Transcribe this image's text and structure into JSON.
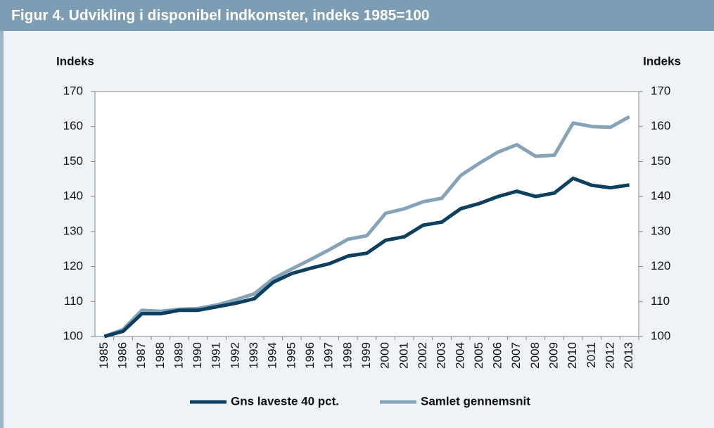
{
  "chart_data": {
    "type": "line",
    "title": "Figur 4. Udvikling i disponibel indkomster, indeks 1985=100",
    "y_label": "Indeks",
    "y2_label": "Indeks",
    "categories": [
      "1985",
      "1986",
      "1987",
      "1988",
      "1989",
      "1990",
      "1991",
      "1992",
      "1993",
      "1994",
      "1995",
      "1996",
      "1997",
      "1998",
      "1999",
      "2000",
      "2001",
      "2002",
      "2003",
      "2004",
      "2005",
      "2006",
      "2007",
      "2008",
      "2009",
      "2010",
      "2011",
      "2012",
      "2013"
    ],
    "series": [
      {
        "name": "Gns laveste 40 pct.",
        "color": "#0d3f5f",
        "values": [
          100,
          101.5,
          106.5,
          106.5,
          107.5,
          107.5,
          108.5,
          109.5,
          110.8,
          115.5,
          118,
          119.5,
          120.8,
          123,
          123.8,
          127.5,
          128.5,
          131.8,
          132.7,
          136.5,
          138,
          140,
          141.5,
          140,
          141,
          145.2,
          143.2,
          142.5,
          143.3
        ]
      },
      {
        "name": "Samlet gennemsnit",
        "color": "#86a3b8",
        "values": [
          100,
          102,
          107.5,
          107.2,
          107.8,
          108,
          109,
          110.5,
          112.2,
          116.5,
          119.3,
          122,
          124.8,
          127.8,
          128.8,
          135.2,
          136.5,
          138.5,
          139.5,
          146,
          149.5,
          152.7,
          154.8,
          151.5,
          151.8,
          161,
          160,
          159.8,
          162.8
        ]
      }
    ],
    "ylim": [
      100,
      170
    ],
    "yticks": [
      100,
      110,
      120,
      130,
      140,
      150,
      160,
      170
    ],
    "y2lim": [
      100,
      170
    ],
    "y2ticks": [
      100,
      110,
      120,
      130,
      140,
      150,
      160,
      170
    ]
  }
}
